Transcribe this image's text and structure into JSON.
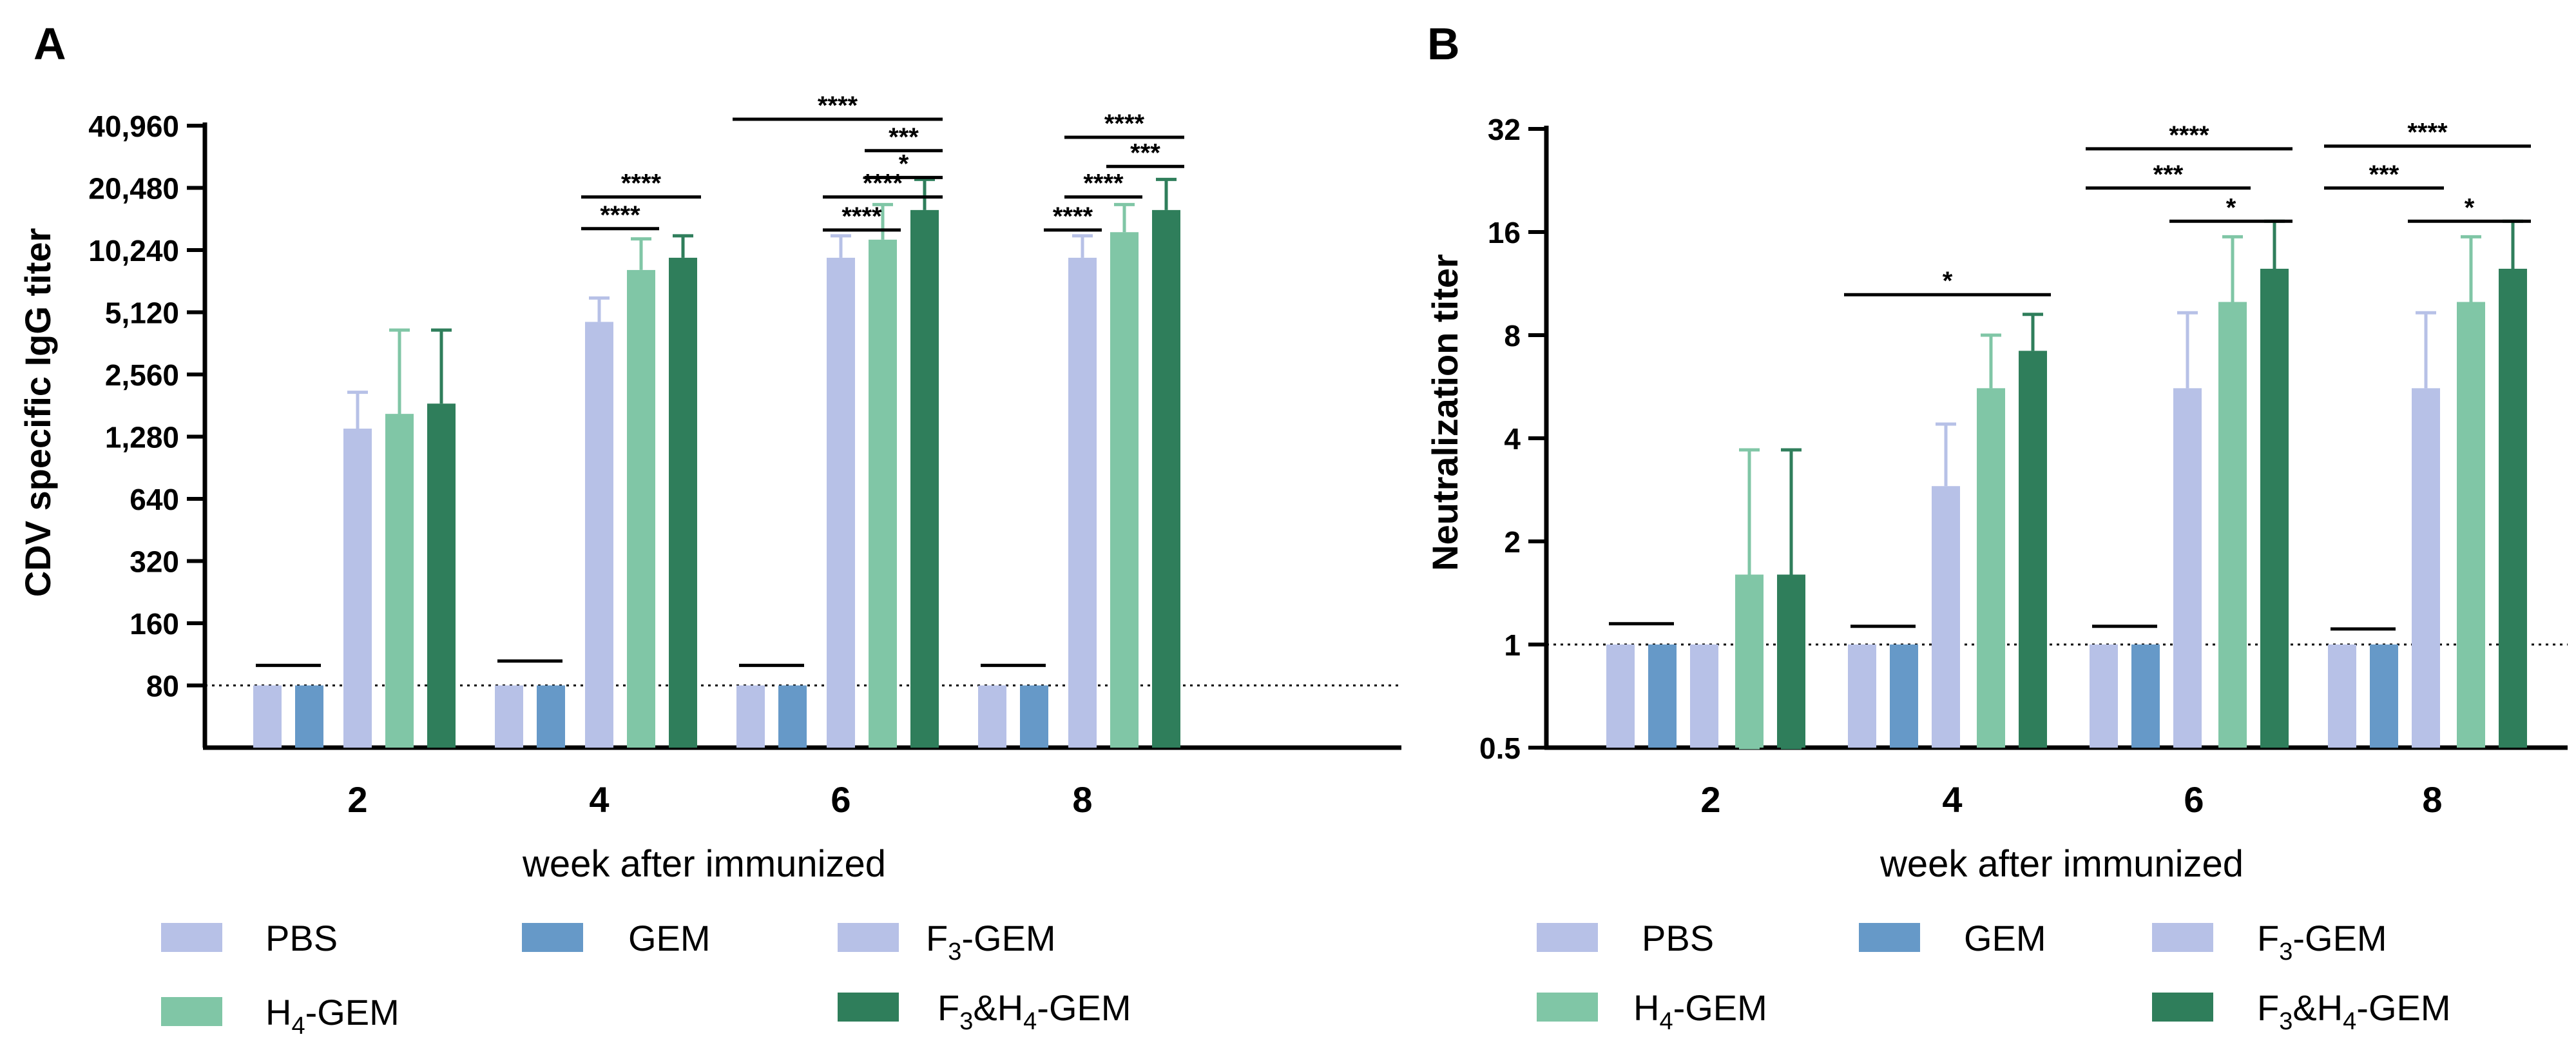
{
  "legend": {
    "pbs": "PBS",
    "gem": "GEM",
    "f3gem": {
      "a": "F",
      "sub": "3",
      "b": "-GEM"
    },
    "h4gem": {
      "a": "H",
      "sub": "4",
      "b": "-GEM"
    },
    "f3h4gem": {
      "a": "F",
      "sub1": "3",
      "b": "&H",
      "sub2": "4",
      "c": "-GEM"
    }
  },
  "colors": {
    "PBS": "#b7c1e7",
    "GEM": "#6699c8",
    "F3-GEM": "#b7c1e7",
    "H4-GEM": "#80c6a6",
    "F3&H4-GEM": "#2f7e5b"
  },
  "chart_data": [
    {
      "panel": "A",
      "type": "bar",
      "xlabel": "week after immunized",
      "ylabel": "CDV specific IgG titer",
      "yscale": "log2",
      "ylim": [
        40,
        40960
      ],
      "ytick_values": [
        80,
        160,
        320,
        640,
        1280,
        2560,
        5120,
        10240,
        20480,
        40960
      ],
      "ytick_labels": [
        "80",
        "160",
        "320",
        "640",
        "1,280",
        "2,560",
        "5,120",
        "10,240",
        "20,480",
        "40,960"
      ],
      "categories": [
        "2",
        "4",
        "6",
        "8"
      ],
      "reference_line": 80,
      "series": [
        {
          "name": "PBS",
          "values": [
            80,
            80,
            80,
            80
          ],
          "err": [
            null,
            null,
            null,
            null
          ]
        },
        {
          "name": "GEM",
          "values": [
            80,
            80,
            80,
            80
          ],
          "err": [
            null,
            null,
            null,
            null
          ]
        },
        {
          "name": "F3-GEM",
          "values": [
            1400,
            4600,
            9400,
            9400
          ],
          "err": [
            2100,
            6000,
            12000,
            12000
          ]
        },
        {
          "name": "H4-GEM",
          "values": [
            1650,
            8200,
            11500,
            12500
          ],
          "err": [
            4200,
            11600,
            17000,
            17000
          ],
          "err_low": [
            41,
            null,
            null,
            null
          ]
        },
        {
          "name": "F3&H4-GEM",
          "values": [
            1850,
            9400,
            16000,
            16000
          ],
          "err": [
            4200,
            12000,
            22500,
            22500
          ]
        }
      ],
      "nd_markers": [
        {
          "week": "2",
          "value": 100
        },
        {
          "week": "4",
          "value": 105
        },
        {
          "week": "6",
          "value": 100
        },
        {
          "week": "8",
          "value": 100
        }
      ],
      "significance": [
        {
          "week": "4",
          "from": "F3-GEM",
          "to": "H4-GEM",
          "label": "****",
          "level": 13000
        },
        {
          "week": "4",
          "from": "F3-GEM",
          "to": "F3&H4-GEM",
          "label": "****",
          "level": 18500
        },
        {
          "week": "6",
          "from": "F3-GEM",
          "to": "H4-GEM",
          "label": "****",
          "level": 12800
        },
        {
          "week": "6",
          "from": "F3-GEM",
          "to": "F3&H4-GEM",
          "label": "****",
          "level": 18500
        },
        {
          "week": "6",
          "from": "H4-GEM",
          "to": "F3&H4-GEM",
          "label": "*",
          "level": 23000
        },
        {
          "week": "6",
          "from": "H4-GEM",
          "to": "F3&H4-GEM",
          "label": "***",
          "level": 31000
        },
        {
          "week": "6",
          "from": "PBS",
          "to": "F3&H4-GEM",
          "label": "****",
          "level": 44000
        },
        {
          "week": "8",
          "from": "F3-GEM",
          "to": "F3-GEM",
          "label": "****",
          "level": 12800
        },
        {
          "week": "8",
          "from": "F3-GEM",
          "to": "H4-GEM",
          "label": "****",
          "level": 18500
        },
        {
          "week": "8",
          "from": "H4-GEM",
          "to": "F3&H4-GEM",
          "label": "***",
          "level": 26000
        },
        {
          "week": "8",
          "from": "F3-GEM",
          "to": "F3&H4-GEM",
          "label": "****",
          "level": 36000
        }
      ]
    },
    {
      "panel": "B",
      "type": "bar",
      "xlabel": "week after immunized",
      "ylabel": "Neutralization titer",
      "yscale": "log2",
      "ylim": [
        0.5,
        32
      ],
      "ytick_values": [
        0.5,
        1,
        2,
        4,
        8,
        16,
        32
      ],
      "ytick_labels": [
        "0.5",
        "1",
        "2",
        "4",
        "8",
        "16",
        "32"
      ],
      "categories": [
        "2",
        "4",
        "6",
        "8"
      ],
      "reference_line": 1,
      "series": [
        {
          "name": "PBS",
          "values": [
            1,
            1,
            1,
            1
          ],
          "err": [
            null,
            null,
            null,
            null
          ]
        },
        {
          "name": "GEM",
          "values": [
            1,
            1,
            1,
            1
          ],
          "err": [
            null,
            null,
            null,
            null
          ]
        },
        {
          "name": "F3-GEM",
          "values": [
            1,
            2.9,
            5.6,
            5.6
          ],
          "err": [
            null,
            4.4,
            9.3,
            9.3
          ]
        },
        {
          "name": "H4-GEM",
          "values": [
            1.6,
            5.6,
            10.0,
            10.0
          ],
          "err": [
            3.7,
            8.0,
            15.5,
            15.5
          ],
          "err_low": [
            0.5,
            null,
            null,
            null
          ]
        },
        {
          "name": "F3&H4-GEM",
          "values": [
            1.6,
            7.2,
            12.5,
            12.5
          ],
          "err": [
            3.7,
            9.2,
            17.2,
            17.2
          ],
          "err_low": [
            0.5,
            null,
            null,
            null
          ]
        }
      ],
      "nd_markers": [
        {
          "week": "2",
          "value": 1.15
        },
        {
          "week": "4",
          "value": 1.13
        },
        {
          "week": "6",
          "value": 1.13
        },
        {
          "week": "8",
          "value": 1.11
        }
      ],
      "significance": [
        {
          "week": "4",
          "from": "PBS",
          "to": "F3&H4-GEM",
          "label": "*",
          "level": 10.5
        },
        {
          "week": "6",
          "from": "F3-GEM",
          "to": "F3&H4-GEM",
          "label": "*",
          "level": 17.2
        },
        {
          "week": "6",
          "from": "PBS",
          "to": "H4-GEM",
          "label": "***",
          "level": 21.5
        },
        {
          "week": "6",
          "from": "PBS",
          "to": "F3&H4-GEM",
          "label": "****",
          "level": 28.0
        },
        {
          "week": "8",
          "from": "F3-GEM",
          "to": "F3&H4-GEM",
          "label": "*",
          "level": 17.2
        },
        {
          "week": "8",
          "from": "PBS",
          "to": "F3-GEM",
          "label": "***",
          "level": 21.5
        },
        {
          "week": "8",
          "from": "PBS",
          "to": "F3&H4-GEM",
          "label": "****",
          "level": 28.5
        }
      ]
    }
  ]
}
